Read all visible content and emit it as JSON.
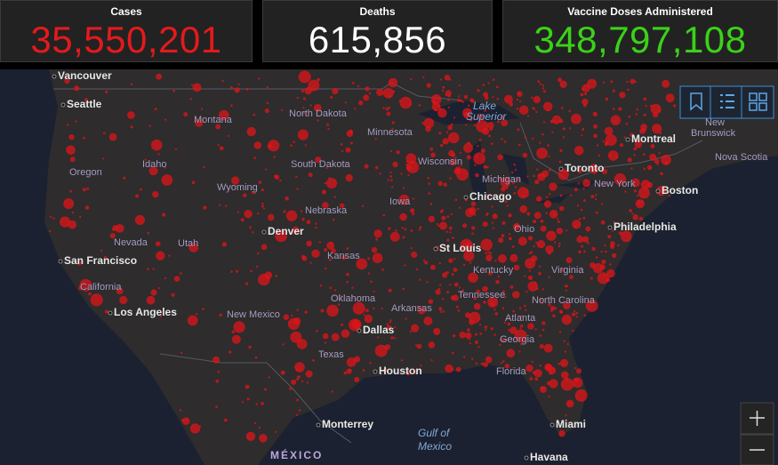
{
  "header": {
    "cards": [
      {
        "title": "Cases",
        "value": "35,550,201",
        "color": "#e31a1c"
      },
      {
        "title": "Deaths",
        "value": "615,856",
        "color": "#ffffff"
      },
      {
        "title": "Vaccine Doses Administered",
        "value": "348,797,108",
        "color": "#3bd11a"
      }
    ]
  },
  "map": {
    "places": [
      "Vancouver",
      "Seattle",
      "Montana",
      "North Dakota",
      "Lake",
      "Superior",
      "Minnesota",
      "Montreal",
      "New",
      "Brunswick",
      "Oregon",
      "Idaho",
      "Wyoming",
      "South Dakota",
      "Wisconsin",
      "Michigan",
      "Toronto",
      "New York",
      "Nova Scotia",
      "Boston",
      "Chicago",
      "Iowa",
      "Nebraska",
      "Denver",
      "Nevada",
      "Utah",
      "San Francisco",
      "California",
      "Kansas",
      "St Louis",
      "Ohio",
      "Philadelphia",
      "Kentucky",
      "Virginia",
      "Tennessee",
      "Oklahoma",
      "Arkansas",
      "North Carolina",
      "Los Angeles",
      "New Mexico",
      "Dallas",
      "Atlanta",
      "Georgia",
      "Texas",
      "Houston",
      "Florida",
      "Monterrey",
      "Gulf of",
      "Mexico",
      "Miami",
      "MÉXICO",
      "Havana"
    ]
  }
}
